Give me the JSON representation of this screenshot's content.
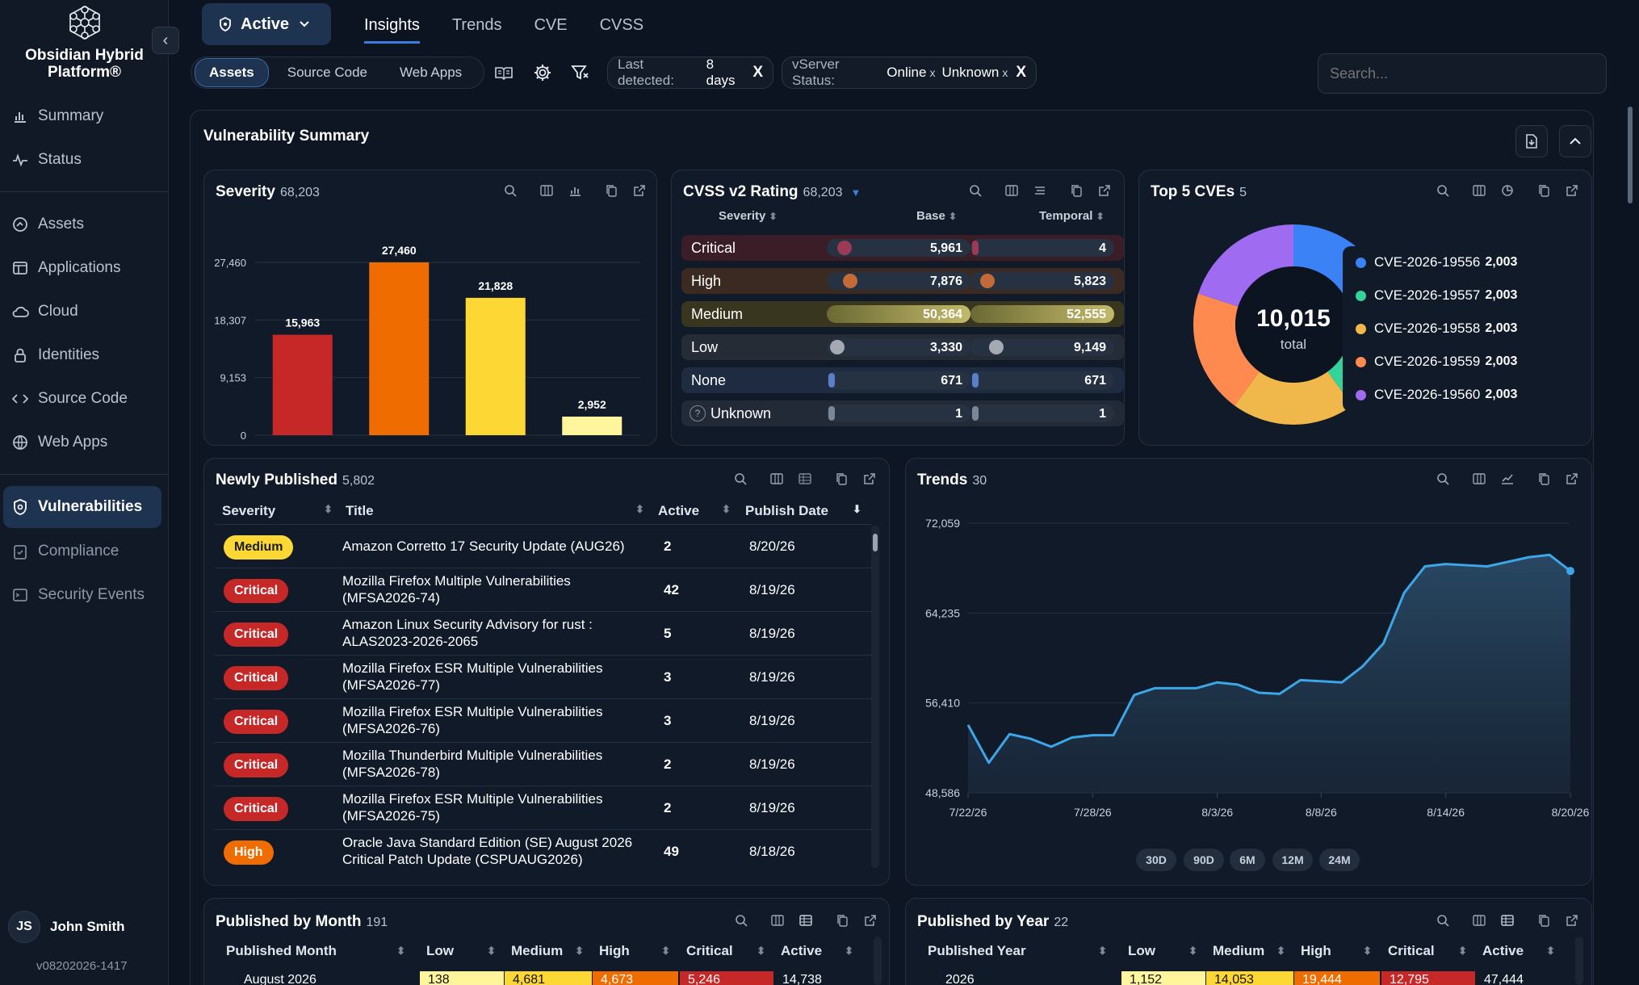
{
  "app": {
    "title": "Obsidian Hybrid Platform®"
  },
  "sidebar": {
    "collapse_label": "‹",
    "items": [
      {
        "label": "Summary",
        "icon": "bar-chart-icon"
      },
      {
        "label": "Status",
        "icon": "pulse-icon"
      },
      {
        "label": "Assets",
        "icon": "assets-icon"
      },
      {
        "label": "Applications",
        "icon": "window-icon"
      },
      {
        "label": "Cloud",
        "icon": "cloud-icon"
      },
      {
        "label": "Identities",
        "icon": "lock-icon"
      },
      {
        "label": "Source Code",
        "icon": "code-icon"
      },
      {
        "label": "Web Apps",
        "icon": "globe-icon"
      },
      {
        "label": "Vulnerabilities",
        "icon": "shield-icon"
      },
      {
        "label": "Compliance",
        "icon": "clipboard-icon"
      },
      {
        "label": "Security Events",
        "icon": "terminal-icon"
      }
    ],
    "user": {
      "initials": "JS",
      "name": "John Smith"
    },
    "version": "v08202026-1417"
  },
  "topbar": {
    "status_label": "Active",
    "tabs": [
      "Insights",
      "Trends",
      "CVE",
      "CVSS"
    ],
    "segments": [
      "Assets",
      "Source Code",
      "Web Apps"
    ],
    "filters": {
      "last_detected_label": "Last detected:",
      "last_detected_value": "8 days",
      "vserver_label": "vServer Status:",
      "vserver_values": [
        "Online",
        "Unknown"
      ],
      "remove": "X",
      "remove_small": "x"
    },
    "search_placeholder": "Search..."
  },
  "summary": {
    "title": "Vulnerability Summary"
  },
  "severity_card": {
    "title": "Severity",
    "count": "68,203"
  },
  "cvss_card": {
    "title": "CVSS v2 Rating",
    "count": "68,203",
    "headers": {
      "severity": "Severity",
      "base": "Base",
      "temporal": "Temporal"
    },
    "rows": [
      {
        "name": "Critical",
        "base": "5,961",
        "temporal": "4"
      },
      {
        "name": "High",
        "base": "7,876",
        "temporal": "5,823"
      },
      {
        "name": "Medium",
        "base": "50,364",
        "temporal": "52,555"
      },
      {
        "name": "Low",
        "base": "3,330",
        "temporal": "9,149"
      },
      {
        "name": "None",
        "base": "671",
        "temporal": "671"
      },
      {
        "name": "Unknown",
        "base": "1",
        "temporal": "1"
      }
    ],
    "base_fill": [
      0.118,
      0.156,
      1.0,
      0.066,
      0.013,
      0.0
    ],
    "temporal_fill": [
      0.0,
      0.111,
      1.0,
      0.174,
      0.013,
      0.0
    ]
  },
  "cves_card": {
    "title": "Top 5 CVEs",
    "count": "5",
    "center_value": "10,015",
    "center_label": "total"
  },
  "newly_published": {
    "title": "Newly Published",
    "count": "5,802",
    "headers": [
      "Severity",
      "Title",
      "Active",
      "Publish Date"
    ],
    "rows": [
      {
        "severity": "Medium",
        "title": "Amazon Corretto 17 Security Update (AUG26)",
        "active": "2",
        "date": "8/20/26"
      },
      {
        "severity": "Critical",
        "title": "Mozilla Firefox Multiple Vulnerabilities (MFSA2026-74)",
        "active": "42",
        "date": "8/19/26"
      },
      {
        "severity": "Critical",
        "title": "Amazon Linux Security Advisory for rust : ALAS2023-2026-2065",
        "active": "5",
        "date": "8/19/26"
      },
      {
        "severity": "Critical",
        "title": "Mozilla Firefox ESR Multiple Vulnerabilities (MFSA2026-77)",
        "active": "3",
        "date": "8/19/26"
      },
      {
        "severity": "Critical",
        "title": "Mozilla Firefox ESR Multiple Vulnerabilities (MFSA2026-76)",
        "active": "3",
        "date": "8/19/26"
      },
      {
        "severity": "Critical",
        "title": "Mozilla Thunderbird Multiple Vulnerabilities (MFSA2026-78)",
        "active": "2",
        "date": "8/19/26"
      },
      {
        "severity": "Critical",
        "title": "Mozilla Firefox ESR Multiple Vulnerabilities (MFSA2026-75)",
        "active": "2",
        "date": "8/19/26"
      },
      {
        "severity": "High",
        "title": "Oracle Java Standard Edition (SE) August 2026 Critical Patch Update (CSPUAUG2026)",
        "active": "49",
        "date": "8/18/26"
      }
    ]
  },
  "trends_card": {
    "title": "Trends",
    "count": "30",
    "ranges": [
      "30D",
      "90D",
      "6M",
      "12M",
      "24M"
    ]
  },
  "by_month": {
    "title": "Published by Month",
    "count": "191",
    "headers": [
      "Published Month",
      "Low",
      "Medium",
      "High",
      "Critical",
      "Active"
    ],
    "row": [
      "August 2026",
      "138",
      "4,681",
      "4,673",
      "5,246",
      "14,738"
    ]
  },
  "by_year": {
    "title": "Published by Year",
    "count": "22",
    "headers": [
      "Published Year",
      "Low",
      "Medium",
      "High",
      "Critical",
      "Active"
    ],
    "row": [
      "2026",
      "1,152",
      "14,053",
      "19,444",
      "12,795",
      "47,444"
    ]
  },
  "colors": {
    "critical": "#c62828",
    "high": "#ef6c00",
    "medium": "#fdd835",
    "low": "#fff59d",
    "accent": "#3b7ddd"
  },
  "chart_data": [
    {
      "type": "bar",
      "categories": [
        "Critical",
        "High",
        "Medium",
        "Low"
      ],
      "values": [
        15963,
        27460,
        21828,
        2952
      ],
      "value_labels": [
        "15,963",
        "27,460",
        "21,828",
        "2,952"
      ],
      "ytick_labels": [
        "0",
        "9,153",
        "18,307",
        "27,460"
      ],
      "ylim": [
        0,
        27460
      ],
      "colors": [
        "#c62828",
        "#ef6c00",
        "#fdd835",
        "#fff59d"
      ],
      "grid": true
    },
    {
      "type": "pie",
      "labels": [
        "CVE-2026-19556",
        "CVE-2026-19557",
        "CVE-2026-19558",
        "CVE-2026-19559",
        "CVE-2026-19560"
      ],
      "values": [
        2003,
        2003,
        2003,
        2003,
        2003
      ],
      "value_labels": [
        "2,003",
        "2,003",
        "2,003",
        "2,003",
        "2,003"
      ],
      "colors": [
        "#3b82f6",
        "#34d399",
        "#f0b84a",
        "#ff8a50",
        "#9f6bf0"
      ],
      "legend": "right"
    },
    {
      "type": "area",
      "x": [
        "7/22/26",
        "7/23/26",
        "7/24/26",
        "7/25/26",
        "7/26/26",
        "7/27/26",
        "7/28/26",
        "7/29/26",
        "7/30/26",
        "7/31/26",
        "8/1/26",
        "8/2/26",
        "8/3/26",
        "8/4/26",
        "8/5/26",
        "8/6/26",
        "8/7/26",
        "8/8/26",
        "8/9/26",
        "8/10/26",
        "8/11/26",
        "8/12/26",
        "8/13/26",
        "8/14/26",
        "8/15/26",
        "8/16/26",
        "8/17/26",
        "8/18/26",
        "8/19/26",
        "8/20/26"
      ],
      "values": [
        54500,
        51200,
        53700,
        53300,
        52600,
        53400,
        53600,
        53600,
        57100,
        57700,
        57700,
        57700,
        58200,
        58000,
        57300,
        57200,
        58400,
        58300,
        58200,
        59600,
        61600,
        66000,
        68300,
        68500,
        68400,
        68300,
        68700,
        69100,
        69300,
        67900
      ],
      "xtick_labels": [
        "7/22/26",
        "7/28/26",
        "8/3/26",
        "8/8/26",
        "8/14/26",
        "8/20/26"
      ],
      "ytick_labels": [
        "48,586",
        "56,410",
        "64,235",
        "72,059"
      ],
      "ylim": [
        48586,
        72059
      ],
      "color": "#3da6e8",
      "grid": true
    }
  ]
}
